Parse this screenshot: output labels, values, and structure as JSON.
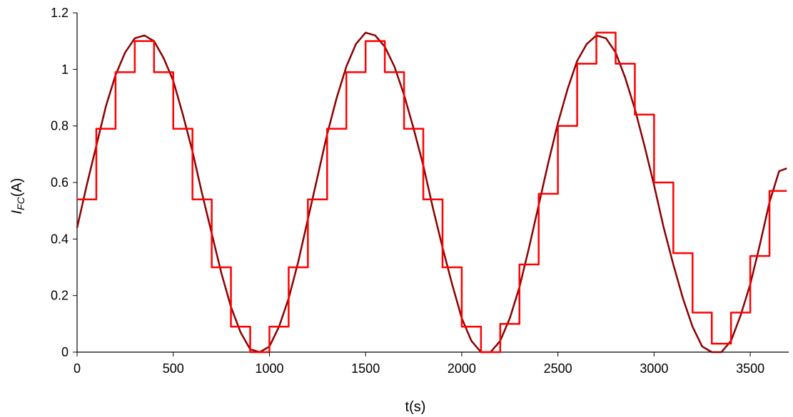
{
  "chart_data": {
    "type": "line",
    "xlabel": "t(s)",
    "ylabel": {
      "main": "I",
      "sub": "FC",
      "unit": "(A)"
    },
    "xlim": [
      0,
      3700
    ],
    "ylim": [
      0,
      1.2
    ],
    "xticks": [
      0,
      500,
      1000,
      1500,
      2000,
      2500,
      3000,
      3500
    ],
    "yticks": [
      0,
      0.2,
      0.4,
      0.6,
      0.8,
      1,
      1.2
    ],
    "xtick_labels": [
      "0",
      "500",
      "1000",
      "1500",
      "2000",
      "2500",
      "3000",
      "3500"
    ],
    "ytick_labels": [
      "0",
      "0.2",
      "0.4",
      "0.6",
      "0.8",
      "1",
      "1.2"
    ],
    "grid": false,
    "legend": false,
    "series": [
      {
        "color": "#8b0000",
        "style": "smooth",
        "x": [
          0,
          50,
          100,
          150,
          200,
          250,
          300,
          350,
          400,
          450,
          500,
          550,
          600,
          650,
          700,
          750,
          800,
          850,
          900,
          950,
          1000,
          1050,
          1100,
          1150,
          1200,
          1250,
          1300,
          1350,
          1400,
          1450,
          1500,
          1550,
          1600,
          1650,
          1700,
          1750,
          1800,
          1850,
          1900,
          1950,
          2000,
          2050,
          2100,
          2150,
          2200,
          2250,
          2300,
          2350,
          2400,
          2450,
          2500,
          2550,
          2600,
          2650,
          2700,
          2750,
          2800,
          2850,
          2900,
          2950,
          3000,
          3050,
          3100,
          3150,
          3200,
          3250,
          3300,
          3350,
          3400,
          3450,
          3500,
          3550,
          3600,
          3650,
          3690
        ],
        "y": [
          0.44,
          0.59,
          0.73,
          0.87,
          0.98,
          1.06,
          1.11,
          1.12,
          1.1,
          1.04,
          0.96,
          0.84,
          0.71,
          0.56,
          0.42,
          0.28,
          0.16,
          0.07,
          0.01,
          0.0,
          0.02,
          0.09,
          0.19,
          0.32,
          0.47,
          0.62,
          0.77,
          0.9,
          1.01,
          1.09,
          1.13,
          1.12,
          1.08,
          1.01,
          0.91,
          0.79,
          0.66,
          0.51,
          0.37,
          0.24,
          0.12,
          0.04,
          0.0,
          0.0,
          0.04,
          0.12,
          0.23,
          0.37,
          0.52,
          0.67,
          0.81,
          0.93,
          1.03,
          1.09,
          1.12,
          1.11,
          1.06,
          0.97,
          0.86,
          0.73,
          0.59,
          0.44,
          0.31,
          0.19,
          0.09,
          0.02,
          0.0,
          0.0,
          0.04,
          0.13,
          0.24,
          0.38,
          0.53,
          0.64,
          0.65
        ]
      },
      {
        "color": "#ff0000",
        "style": "step",
        "x": [
          0,
          100,
          200,
          300,
          400,
          500,
          600,
          700,
          800,
          900,
          1000,
          1100,
          1200,
          1300,
          1400,
          1500,
          1600,
          1700,
          1800,
          1900,
          2000,
          2100,
          2200,
          2300,
          2400,
          2500,
          2600,
          2700,
          2800,
          2900,
          3000,
          3100,
          3200,
          3300,
          3400,
          3500,
          3600,
          3690
        ],
        "y": [
          0.54,
          0.79,
          0.99,
          1.1,
          0.99,
          0.79,
          0.54,
          0.3,
          0.09,
          0.0,
          0.09,
          0.3,
          0.54,
          0.79,
          0.99,
          1.1,
          0.99,
          0.79,
          0.54,
          0.3,
          0.09,
          0.0,
          0.1,
          0.31,
          0.56,
          0.8,
          1.02,
          1.13,
          1.02,
          0.84,
          0.6,
          0.35,
          0.14,
          0.03,
          0.14,
          0.34,
          0.57,
          0.57
        ]
      }
    ]
  }
}
